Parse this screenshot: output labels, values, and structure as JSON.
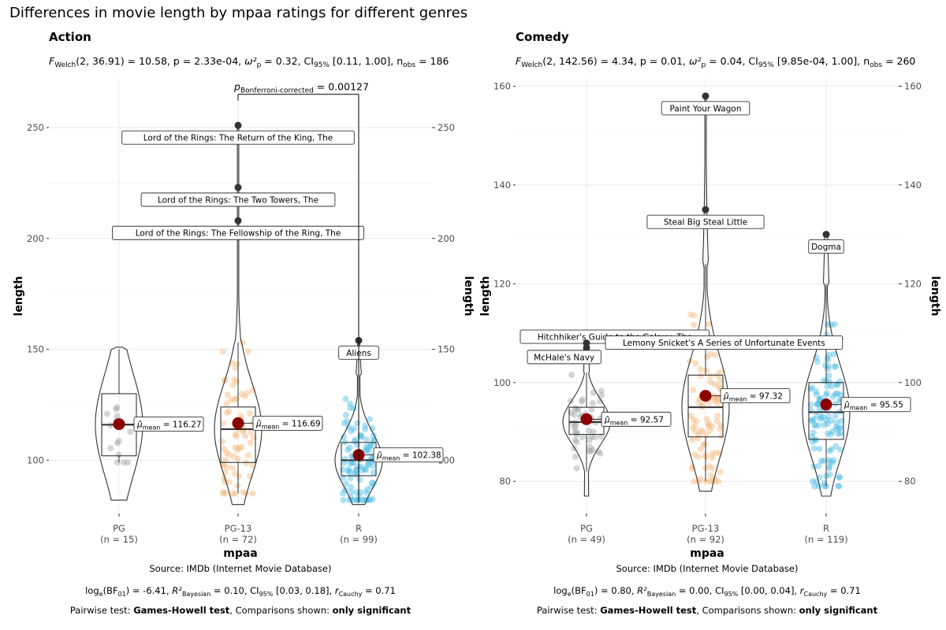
{
  "title": "Differences in movie length by mpaa ratings for different genres",
  "colors": {
    "PG": "#9ea4a4",
    "PG-13": "#f3b87d",
    "R": "#4bbde4",
    "mean": "#8b0000",
    "outlier": "#333333"
  },
  "chart_data": [
    {
      "type": "violin-box",
      "subtitle": "Action",
      "stat_main": "Welch",
      "stat_args": "(2, 36.91) = 10.58, ",
      "stat_p": "p = 2.33e-04, ",
      "stat_eff": "p",
      "stat_eff_val": " = 0.32, CI",
      "stat_ci_sub": "95%",
      "stat_ci": " [0.11, 1.00], n",
      "stat_n_sub": "obs",
      "stat_n": " = 186",
      "xlabel": "mpaa",
      "ylabel": "length",
      "ylim": [
        76,
        272
      ],
      "yticks": [
        100,
        150,
        200,
        250
      ],
      "categories": [
        "PG",
        "PG-13",
        "R"
      ],
      "counts": [
        "(n = 15)",
        "(n = 72)",
        "(n = 99)"
      ],
      "box": [
        {
          "q1": 102,
          "median": 116,
          "q3": 130,
          "whisker_lo": 99,
          "whisker_hi": 150
        },
        {
          "q1": 99,
          "median": 114,
          "q3": 124,
          "whisker_lo": 85,
          "whisker_hi": 153
        },
        {
          "q1": 93,
          "median": 100,
          "q3": 108,
          "whisker_lo": 82,
          "whisker_hi": 138
        }
      ],
      "violin_range": [
        [
          82,
          151
        ],
        [
          80,
          252
        ],
        [
          80,
          154
        ]
      ],
      "means": [
        116.27,
        116.69,
        102.38
      ],
      "mean_labels": [
        "= 116.27",
        "= 116.69",
        "= 102.38"
      ],
      "outliers": [
        {
          "group": 1,
          "value": 251,
          "label": "Lord of the Rings: The Return of the King, The"
        },
        {
          "group": 1,
          "value": 223,
          "label": "Lord of the Rings: The Two Towers, The"
        },
        {
          "group": 1,
          "value": 208,
          "label": "Lord of the Rings: The Fellowship of the Ring, The"
        },
        {
          "group": 2,
          "value": 154,
          "label": "Aliens"
        }
      ],
      "pairwise": {
        "from": 1,
        "to": 2,
        "value": 265,
        "text_sub": "Bonferroni-corrected",
        "text_val": " = 0.00127"
      },
      "caption_source": "Source: IMDb (Internet Movie Database)",
      "caption_bf": "log(BF) = -6.41, R² = 0.10, CI [0.03, 0.18], r = 0.71",
      "bf_val": " = -6.41, ",
      "r2_val": " = 0.10, CI",
      "ci_val": " [0.03, 0.18], ",
      "r_val": " = 0.71",
      "caption_pairwise_a": "Pairwise test: ",
      "caption_pairwise_b": "Games-Howell test",
      "caption_pairwise_c": ", Comparisons shown: ",
      "caption_pairwise_d": "only significant"
    },
    {
      "type": "violin-box",
      "subtitle": "Comedy",
      "stat_main": "Welch",
      "stat_args": "(2, 142.56) = 4.34, ",
      "stat_p": "p = 0.01, ",
      "stat_eff": "p",
      "stat_eff_val": " = 0.04, CI",
      "stat_ci_sub": "95%",
      "stat_ci": " [9.85e-04, 1.00], n",
      "stat_n_sub": "obs",
      "stat_n": " = 260",
      "xlabel": "mpaa",
      "ylabel": "length",
      "ylim": [
        73.5,
        161.5
      ],
      "yticks": [
        80,
        100,
        120,
        140,
        160
      ],
      "categories": [
        "PG",
        "PG-13",
        "R"
      ],
      "counts": [
        "(n = 49)",
        "(n = 92)",
        "(n = 119)"
      ],
      "box": [
        {
          "q1": 89.5,
          "median": 92,
          "q3": 95,
          "whisker_lo": 82,
          "whisker_hi": 102
        },
        {
          "q1": 89,
          "median": 95,
          "q3": 101.5,
          "whisker_lo": 80,
          "whisker_hi": 124
        },
        {
          "q1": 88.5,
          "median": 94,
          "q3": 100,
          "whisker_lo": 79,
          "whisker_hi": 120
        }
      ],
      "violin_range": [
        [
          77,
          110
        ],
        [
          78,
          158
        ],
        [
          77,
          130
        ]
      ],
      "means": [
        92.57,
        97.32,
        95.55
      ],
      "mean_labels": [
        "= 92.57",
        "= 97.32",
        "= 95.55"
      ],
      "outliers": [
        {
          "group": 1,
          "value": 158,
          "label": "Paint Your Wagon"
        },
        {
          "group": 1,
          "value": 135,
          "label": "Steal Big Steal Little"
        },
        {
          "group": 2,
          "value": 130,
          "label": "Dogma"
        },
        {
          "group": 0,
          "value": 110,
          "label": "Hitchhiker's Guide to the Galaxy, The"
        },
        {
          "group": 0,
          "value": 108,
          "label": "Lemony Snicket's A Series of Unfortunate Events"
        },
        {
          "group": 0,
          "value": 107,
          "label": "McHale's Navy"
        }
      ],
      "pairwise": null,
      "caption_source": "Source: IMDb (Internet Movie Database)",
      "caption_bf": "log(BF) = 0.80, R² = 0.00, CI [0.00, 0.04], r = 0.71",
      "bf_val": " = 0.80, ",
      "r2_val": " = 0.00, CI",
      "ci_val": " [0.00, 0.04], ",
      "r_val": " = 0.71",
      "caption_pairwise_a": "Pairwise test: ",
      "caption_pairwise_b": "Games-Howell test",
      "caption_pairwise_c": ", Comparisons shown: ",
      "caption_pairwise_d": "only significant"
    }
  ]
}
